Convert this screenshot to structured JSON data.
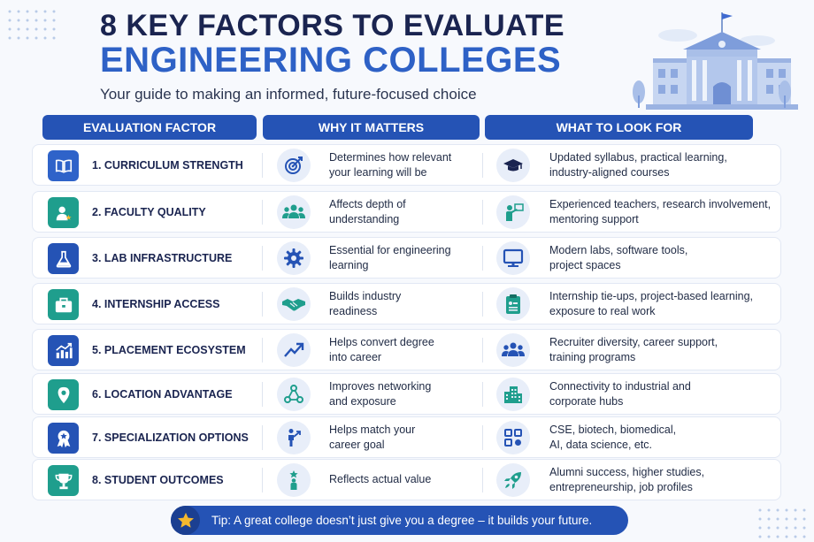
{
  "header": {
    "title_line1": "8 KEY FACTORS TO EVALUATE",
    "title_line2": "ENGINEERING COLLEGES",
    "subtitle": "Your guide to making an informed, future-focused choice"
  },
  "columns": {
    "factor": "EVALUATION FACTOR",
    "why": "WHY IT MATTERS",
    "look": "WHAT TO LOOK FOR"
  },
  "rows": [
    {
      "factor": "1. CURRICULUM STRENGTH",
      "factor_icon": "book-icon",
      "factor_color": "#2f63c9",
      "why_line1": "Determines how relevant",
      "why_line2": "your learning will be",
      "why_icon": "target-icon",
      "look_line1": "Updated syllabus, practical learning,",
      "look_line2": "industry-aligned courses",
      "look_icon": "graduation-cap-icon"
    },
    {
      "factor": "2. FACULTY QUALITY",
      "factor_icon": "teacher-icon",
      "factor_color": "#1f9e8d",
      "why_line1": "Affects depth of",
      "why_line2": "understanding",
      "why_icon": "people-group-icon",
      "look_line1": "Experienced teachers, research involvement,",
      "look_line2": "mentoring support",
      "look_icon": "presenter-icon"
    },
    {
      "factor": "3. LAB INFRASTRUCTURE",
      "factor_icon": "flask-icon",
      "factor_color": "#2553b5",
      "why_line1": "Essential for engineering",
      "why_line2": "learning",
      "why_icon": "gear-icon",
      "look_line1": "Modern labs, software tools,",
      "look_line2": "project spaces",
      "look_icon": "monitor-icon"
    },
    {
      "factor": "4. INTERNSHIP ACCESS",
      "factor_icon": "briefcase-icon",
      "factor_color": "#1f9e8d",
      "why_line1": "Builds industry",
      "why_line2": "readiness",
      "why_icon": "handshake-icon",
      "look_line1": "Internship tie-ups, project-based learning,",
      "look_line2": "exposure to real work",
      "look_icon": "clipboard-icon"
    },
    {
      "factor": "5. PLACEMENT ECOSYSTEM",
      "factor_icon": "growth-chart-icon",
      "factor_color": "#2553b5",
      "why_line1": "Helps convert degree",
      "why_line2": "into career",
      "why_icon": "trend-arrow-icon",
      "look_line1": "Recruiter diversity, career support,",
      "look_line2": "training programs",
      "look_icon": "users-icon"
    },
    {
      "factor": "6. LOCATION ADVANTAGE",
      "factor_icon": "map-pin-icon",
      "factor_color": "#1f9e8d",
      "why_line1": "Improves networking",
      "why_line2": "and exposure",
      "why_icon": "network-icon",
      "look_line1": "Connectivity to industrial and",
      "look_line2": "corporate hubs",
      "look_icon": "buildings-icon"
    },
    {
      "factor": "7. SPECIALIZATION OPTIONS",
      "factor_icon": "award-badge-icon",
      "factor_color": "#2553b5",
      "why_line1": "Helps match your",
      "why_line2": "career goal",
      "why_icon": "person-goal-icon",
      "look_line1": "CSE, biotech, biomedical,",
      "look_line2": "AI, data science, etc.",
      "look_icon": "grid-options-icon"
    },
    {
      "factor": "8. STUDENT OUTCOMES",
      "factor_icon": "trophy-icon",
      "factor_color": "#1f9e8d",
      "why_line1": "Reflects actual value",
      "why_line2": "",
      "why_icon": "achiever-icon",
      "look_line1": "Alumni success, higher studies,",
      "look_line2": "entrepreneurship, job profiles",
      "look_icon": "rocket-icon"
    }
  ],
  "tip": {
    "icon": "star-icon",
    "text": "Tip: A great college doesn’t just give you a degree – it builds your future."
  },
  "colors": {
    "navy": "#1a2450",
    "brand_blue": "#2553b5",
    "accent_blue": "#2e61c6",
    "teal": "#1f9e8d",
    "star": "#f5b82e"
  }
}
